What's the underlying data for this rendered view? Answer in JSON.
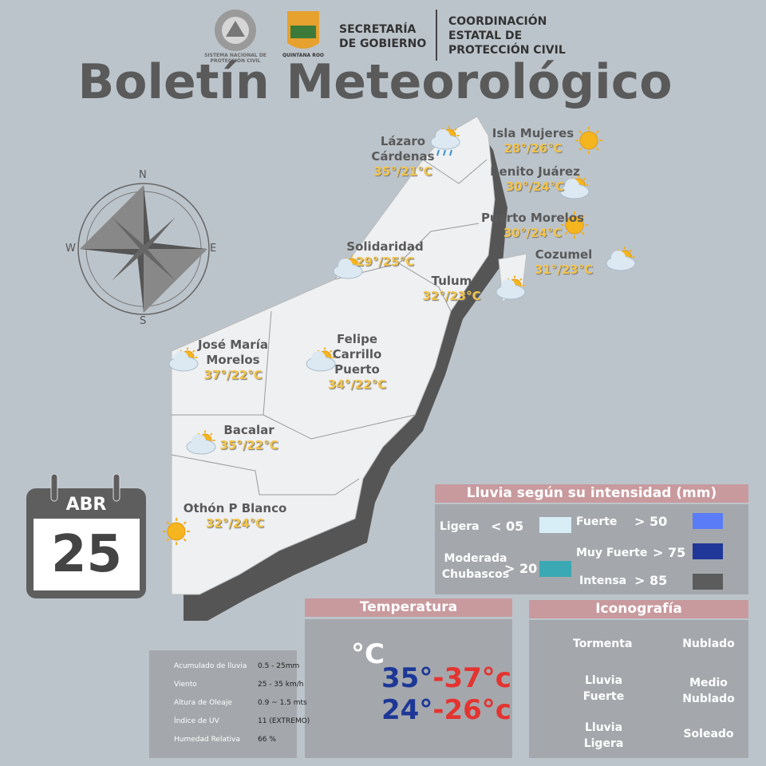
{
  "header": {
    "logo1_text": "SISTEMA NACIONAL DE PROTECCIÓN CIVIL",
    "logo2_text": "QUINTANA ROO",
    "agency1": "SECRETARÍA DE GOBIERNO",
    "agency2": "COORDINACIÓN ESTATAL DE PROTECCIÓN CIVIL",
    "title": "Boletín Meteorológico"
  },
  "compass": {
    "n": "N",
    "e": "E",
    "s": "S",
    "w": "W"
  },
  "cities": [
    {
      "name": "Lázaro Cárdenas",
      "temp": "35°/21°C"
    },
    {
      "name": "Isla Mujeres",
      "temp": "28°/26°C"
    },
    {
      "name": "Benito Juárez",
      "temp": "30°/24°C"
    },
    {
      "name": "Puerto Morelos",
      "temp": "30°/24°C"
    },
    {
      "name": "Solidaridad",
      "temp": "29°/25°C"
    },
    {
      "name": "Cozumel",
      "temp": "31°/23°C"
    },
    {
      "name": "Tulum",
      "temp": "32°/23°C"
    },
    {
      "name": "José María Morelos",
      "temp": "37°/22°C"
    },
    {
      "name": "Felipe Carrillo Puerto",
      "temp": "34°/22°C"
    },
    {
      "name": "Bacalar",
      "temp": "35°/22°C"
    },
    {
      "name": "Othón P Blanco",
      "temp": "32°/24°C"
    }
  ],
  "date": {
    "month": "ABR",
    "day": "25"
  },
  "rain_legend": {
    "title": "Lluvia según su intensidad (mm)",
    "items": [
      {
        "label": "Ligera",
        "threshold": "< 05",
        "color": "#d8eef6"
      },
      {
        "label": "Moderada Chubascos",
        "threshold": "> 20",
        "color": "#3aa9b3"
      },
      {
        "label": "Fuerte",
        "threshold": "> 50",
        "color": "#5a7cf6"
      },
      {
        "label": "Muy Fuerte",
        "threshold": "> 75",
        "color": "#1f3798"
      },
      {
        "label": "Intensa",
        "threshold": "> 85",
        "color": "#5c5c5c"
      }
    ]
  },
  "temperature": {
    "title": "Temperatura",
    "unit": "°C",
    "rows": [
      {
        "min": "35°",
        "max": "-37°c"
      },
      {
        "min": "24°",
        "max": "-26°c"
      }
    ]
  },
  "iconography": {
    "title": "Iconografía",
    "items": [
      "Tormenta",
      "Nublado",
      "Lluvia Fuerte",
      "Medio Nublado",
      "Lluvia Ligera",
      "Soleado"
    ]
  },
  "info": [
    {
      "label": "Acumulado de lluvia",
      "value": "0.5 - 25mm"
    },
    {
      "label": "Viento",
      "value": "25 - 35 km/h"
    },
    {
      "label": "Altura de Oleaje",
      "value": "0.9 ~ 1.5 mts"
    },
    {
      "label": "Índice de UV",
      "value": "11 (EXTREMO)"
    },
    {
      "label": "Humedad Relativa",
      "value": "66 %"
    }
  ]
}
